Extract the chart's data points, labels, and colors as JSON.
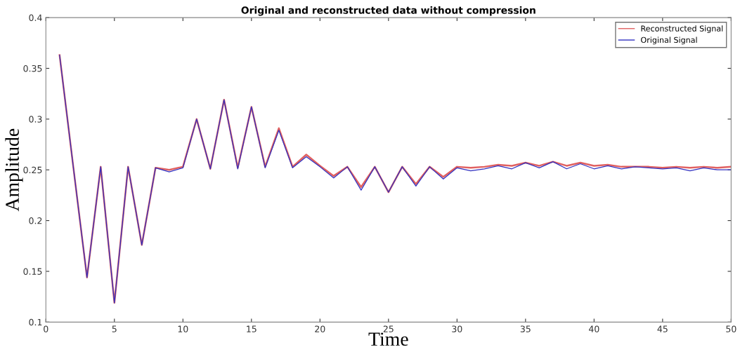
{
  "chart_data": {
    "type": "line",
    "title": "Original and reconstructed data without compression",
    "xlabel": "Time",
    "ylabel": "Amplitude",
    "x": [
      1,
      2,
      3,
      4,
      5,
      6,
      7,
      8,
      9,
      10,
      11,
      12,
      13,
      14,
      15,
      16,
      17,
      18,
      19,
      20,
      21,
      22,
      23,
      24,
      25,
      26,
      27,
      28,
      29,
      30,
      31,
      32,
      33,
      34,
      35,
      36,
      37,
      38,
      39,
      40,
      41,
      42,
      43,
      44,
      45,
      46,
      47,
      48,
      49,
      50
    ],
    "series": [
      {
        "name": "Reconstructed Signal",
        "color": "#e06060",
        "values": [
          0.363,
          0.253,
          0.144,
          0.253,
          0.119,
          0.253,
          0.176,
          0.252,
          0.25,
          0.253,
          0.3,
          0.251,
          0.319,
          0.252,
          0.312,
          0.253,
          0.291,
          0.253,
          0.265,
          0.254,
          0.244,
          0.253,
          0.233,
          0.253,
          0.228,
          0.253,
          0.236,
          0.253,
          0.243,
          0.253,
          0.252,
          0.253,
          0.255,
          0.254,
          0.257,
          0.254,
          0.258,
          0.254,
          0.257,
          0.254,
          0.255,
          0.253,
          0.253,
          0.253,
          0.252,
          0.253,
          0.252,
          0.253,
          0.252,
          0.253
        ]
      },
      {
        "name": "Original Signal",
        "color": "#3030c0",
        "values": [
          0.363,
          0.253,
          0.144,
          0.253,
          0.119,
          0.253,
          0.176,
          0.252,
          0.248,
          0.252,
          0.3,
          0.251,
          0.319,
          0.251,
          0.312,
          0.252,
          0.289,
          0.252,
          0.263,
          0.253,
          0.242,
          0.253,
          0.23,
          0.253,
          0.228,
          0.253,
          0.234,
          0.253,
          0.241,
          0.252,
          0.249,
          0.251,
          0.254,
          0.251,
          0.257,
          0.252,
          0.258,
          0.251,
          0.256,
          0.251,
          0.254,
          0.251,
          0.253,
          0.252,
          0.251,
          0.252,
          0.249,
          0.252,
          0.25,
          0.25
        ]
      }
    ],
    "xlim": [
      0,
      50
    ],
    "xticks": [
      0,
      5,
      10,
      15,
      20,
      25,
      30,
      35,
      40,
      45,
      50
    ],
    "ylim": [
      0.1,
      0.4
    ],
    "yticks": [
      0.1,
      0.15,
      0.2,
      0.25,
      0.3,
      0.35,
      0.4
    ],
    "grid": false,
    "legend": "top right",
    "marker": "none",
    "line_style": "solid"
  }
}
